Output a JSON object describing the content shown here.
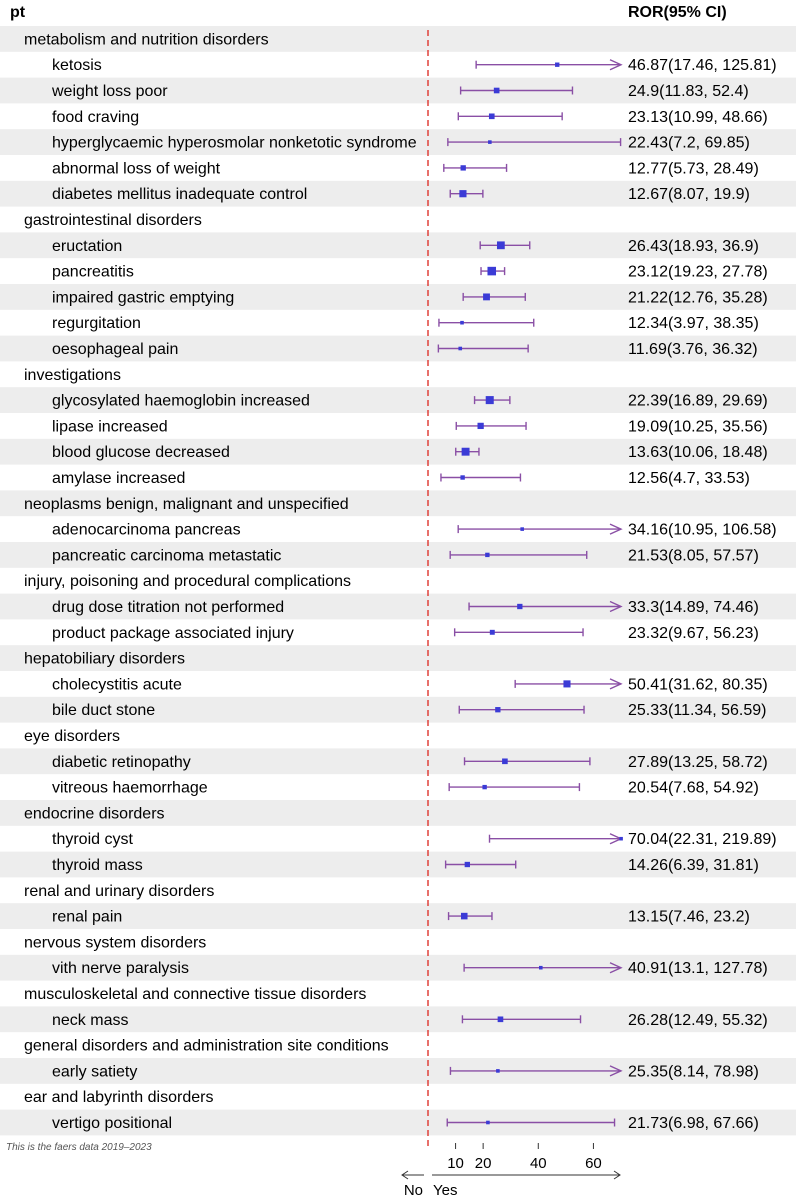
{
  "headers": {
    "left": "pt",
    "right": "ROR(95% CI)"
  },
  "footnote": "This is the faers data 2019–2023",
  "axis": {
    "ticks": [
      "10",
      "20",
      "40",
      "60"
    ],
    "no_label": "No",
    "yes_label": "Yes"
  },
  "colors": {
    "stripe": "#ededed",
    "ci": "#8a4fa5",
    "point": "#3b3bd6",
    "refline": "#e0403a"
  },
  "chart_data": {
    "type": "forest",
    "reference_value": 1,
    "xlim": [
      0,
      70
    ],
    "rows": [
      {
        "kind": "group",
        "label": "metabolism and nutrition disorders"
      },
      {
        "kind": "item",
        "label": "ketosis",
        "ror": 46.87,
        "lo": 17.46,
        "hi": 125.81,
        "text": "46.87(17.46, 125.81)"
      },
      {
        "kind": "item",
        "label": "weight loss poor",
        "ror": 24.9,
        "lo": 11.83,
        "hi": 52.4,
        "text": "24.9(11.83, 52.4)"
      },
      {
        "kind": "item",
        "label": "food craving",
        "ror": 23.13,
        "lo": 10.99,
        "hi": 48.66,
        "text": "23.13(10.99, 48.66)"
      },
      {
        "kind": "item",
        "label": "hyperglycaemic hyperosmolar nonketotic syndrome",
        "ror": 22.43,
        "lo": 7.2,
        "hi": 69.85,
        "text": "22.43(7.2, 69.85)"
      },
      {
        "kind": "item",
        "label": "abnormal loss of weight",
        "ror": 12.77,
        "lo": 5.73,
        "hi": 28.49,
        "text": "12.77(5.73, 28.49)"
      },
      {
        "kind": "item",
        "label": "diabetes mellitus inadequate control",
        "ror": 12.67,
        "lo": 8.07,
        "hi": 19.9,
        "text": "12.67(8.07, 19.9)"
      },
      {
        "kind": "group",
        "label": "gastrointestinal disorders"
      },
      {
        "kind": "item",
        "label": "eructation",
        "ror": 26.43,
        "lo": 18.93,
        "hi": 36.9,
        "text": "26.43(18.93, 36.9)"
      },
      {
        "kind": "item",
        "label": "pancreatitis",
        "ror": 23.12,
        "lo": 19.23,
        "hi": 27.78,
        "text": "23.12(19.23, 27.78)"
      },
      {
        "kind": "item",
        "label": "impaired gastric emptying",
        "ror": 21.22,
        "lo": 12.76,
        "hi": 35.28,
        "text": "21.22(12.76, 35.28)"
      },
      {
        "kind": "item",
        "label": "regurgitation",
        "ror": 12.34,
        "lo": 3.97,
        "hi": 38.35,
        "text": "12.34(3.97, 38.35)"
      },
      {
        "kind": "item",
        "label": "oesophageal pain",
        "ror": 11.69,
        "lo": 3.76,
        "hi": 36.32,
        "text": "11.69(3.76, 36.32)"
      },
      {
        "kind": "group",
        "label": "investigations"
      },
      {
        "kind": "item",
        "label": "glycosylated haemoglobin increased",
        "ror": 22.39,
        "lo": 16.89,
        "hi": 29.69,
        "text": "22.39(16.89, 29.69)"
      },
      {
        "kind": "item",
        "label": "lipase increased",
        "ror": 19.09,
        "lo": 10.25,
        "hi": 35.56,
        "text": "19.09(10.25, 35.56)"
      },
      {
        "kind": "item",
        "label": "blood glucose decreased",
        "ror": 13.63,
        "lo": 10.06,
        "hi": 18.48,
        "text": "13.63(10.06, 18.48)"
      },
      {
        "kind": "item",
        "label": "amylase increased",
        "ror": 12.56,
        "lo": 4.7,
        "hi": 33.53,
        "text": "12.56(4.7, 33.53)"
      },
      {
        "kind": "group",
        "label": "neoplasms benign, malignant and unspecified"
      },
      {
        "kind": "item",
        "label": "adenocarcinoma pancreas",
        "ror": 34.16,
        "lo": 10.95,
        "hi": 106.58,
        "text": "34.16(10.95, 106.58)"
      },
      {
        "kind": "item",
        "label": "pancreatic carcinoma metastatic",
        "ror": 21.53,
        "lo": 8.05,
        "hi": 57.57,
        "text": "21.53(8.05, 57.57)"
      },
      {
        "kind": "group",
        "label": "injury, poisoning and procedural complications"
      },
      {
        "kind": "item",
        "label": "drug dose titration not performed",
        "ror": 33.3,
        "lo": 14.89,
        "hi": 74.46,
        "text": "33.3(14.89, 74.46)"
      },
      {
        "kind": "item",
        "label": "product package associated injury",
        "ror": 23.32,
        "lo": 9.67,
        "hi": 56.23,
        "text": "23.32(9.67, 56.23)"
      },
      {
        "kind": "group",
        "label": "hepatobiliary disorders"
      },
      {
        "kind": "item",
        "label": "cholecystitis acute",
        "ror": 50.41,
        "lo": 31.62,
        "hi": 80.35,
        "text": "50.41(31.62, 80.35)"
      },
      {
        "kind": "item",
        "label": "bile duct stone",
        "ror": 25.33,
        "lo": 11.34,
        "hi": 56.59,
        "text": "25.33(11.34, 56.59)"
      },
      {
        "kind": "group",
        "label": "eye disorders"
      },
      {
        "kind": "item",
        "label": "diabetic retinopathy",
        "ror": 27.89,
        "lo": 13.25,
        "hi": 58.72,
        "text": "27.89(13.25, 58.72)"
      },
      {
        "kind": "item",
        "label": "vitreous haemorrhage",
        "ror": 20.54,
        "lo": 7.68,
        "hi": 54.92,
        "text": "20.54(7.68, 54.92)"
      },
      {
        "kind": "group",
        "label": "endocrine disorders"
      },
      {
        "kind": "item",
        "label": "thyroid cyst",
        "ror": 70.04,
        "lo": 22.31,
        "hi": 219.89,
        "text": "70.04(22.31, 219.89)"
      },
      {
        "kind": "item",
        "label": "thyroid mass",
        "ror": 14.26,
        "lo": 6.39,
        "hi": 31.81,
        "text": "14.26(6.39, 31.81)"
      },
      {
        "kind": "group",
        "label": "renal and urinary disorders"
      },
      {
        "kind": "item",
        "label": "renal pain",
        "ror": 13.15,
        "lo": 7.46,
        "hi": 23.2,
        "text": "13.15(7.46, 23.2)"
      },
      {
        "kind": "group",
        "label": "nervous system disorders"
      },
      {
        "kind": "item",
        "label": "vith nerve paralysis",
        "ror": 40.91,
        "lo": 13.1,
        "hi": 127.78,
        "text": "40.91(13.1, 127.78)"
      },
      {
        "kind": "group",
        "label": "musculoskeletal and connective tissue disorders"
      },
      {
        "kind": "item",
        "label": "neck mass",
        "ror": 26.28,
        "lo": 12.49,
        "hi": 55.32,
        "text": "26.28(12.49, 55.32)"
      },
      {
        "kind": "group",
        "label": "general disorders and administration site conditions"
      },
      {
        "kind": "item",
        "label": "early satiety",
        "ror": 25.35,
        "lo": 8.14,
        "hi": 78.98,
        "text": "25.35(8.14, 78.98)"
      },
      {
        "kind": "group",
        "label": "ear and labyrinth disorders"
      },
      {
        "kind": "item",
        "label": "vertigo positional",
        "ror": 21.73,
        "lo": 6.98,
        "hi": 67.66,
        "text": "21.73(6.98, 67.66)"
      }
    ]
  }
}
